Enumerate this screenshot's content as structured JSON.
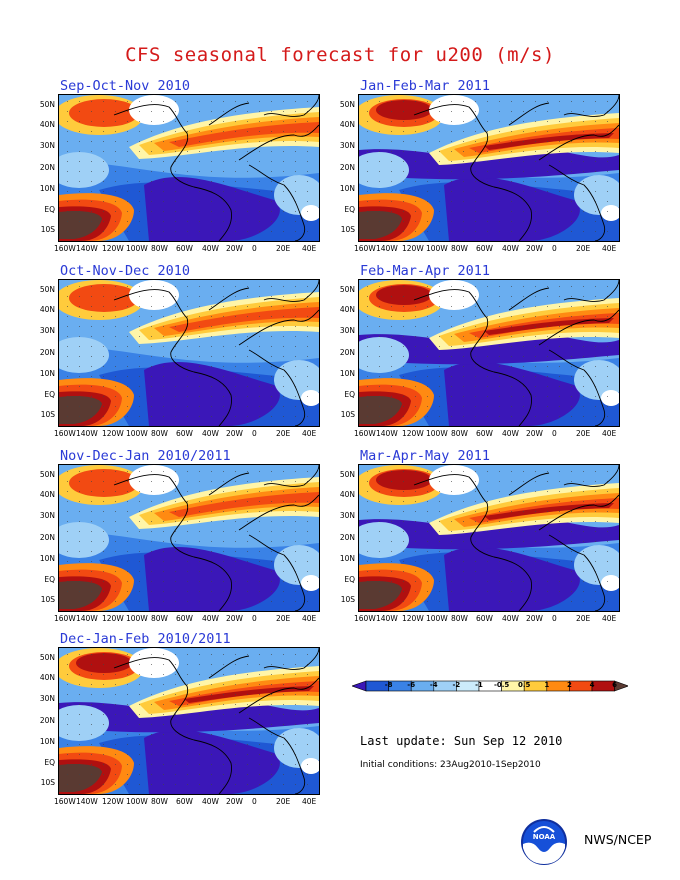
{
  "title": "CFS seasonal forecast for u200 (m/s)",
  "panels": [
    {
      "label": "Sep-Oct-Nov 2010",
      "variant": 0
    },
    {
      "label": "Jan-Feb-Mar 2011",
      "variant": 4
    },
    {
      "label": "Oct-Nov-Dec 2010",
      "variant": 1
    },
    {
      "label": "Feb-Mar-Apr 2011",
      "variant": 5
    },
    {
      "label": "Nov-Dec-Jan 2010/2011",
      "variant": 2
    },
    {
      "label": "Mar-Apr-May 2011",
      "variant": 6
    },
    {
      "label": "Dec-Jan-Feb 2010/2011",
      "variant": 3
    }
  ],
  "y_ticks": [
    "50N",
    "40N",
    "30N",
    "20N",
    "10N",
    "EQ",
    "10S"
  ],
  "x_ticks": [
    "160W",
    "140W",
    "120W",
    "100W",
    "80W",
    "60W",
    "40W",
    "20W",
    "0",
    "20E",
    "40E"
  ],
  "colorbar": {
    "labels": [
      "-8",
      "-6",
      "-4",
      "-2",
      "-1",
      "-0.5",
      "0.5",
      "1",
      "2",
      "4",
      "6"
    ],
    "colors": [
      "#3b17b8",
      "#1f58d4",
      "#3a82e6",
      "#6aaef0",
      "#9fd0f6",
      "#ccecfb",
      "#ffffff",
      "#fff5a8",
      "#ffcb3c",
      "#ff8a12",
      "#f24a12",
      "#b01010",
      "#5a3a32"
    ]
  },
  "last_update": "Last update: Sun Sep 12 2010",
  "initial_conditions": "Initial conditions: 23Aug2010-1Sep2010",
  "agency": "NWS/NCEP",
  "logo_text": "NOAA",
  "chart_data": {
    "type": "heatmap",
    "title": "CFS seasonal forecast for u200 (m/s)",
    "variable": "u200",
    "units": "m/s",
    "panels": [
      "Sep-Oct-Nov 2010",
      "Jan-Feb-Mar 2011",
      "Oct-Nov-Dec 2010",
      "Feb-Mar-Apr 2011",
      "Nov-Dec-Jan 2010/2011",
      "Mar-Apr-May 2011",
      "Dec-Jan-Feb 2010/2011"
    ],
    "x_range": [
      "160W",
      "50E"
    ],
    "y_range": [
      "15S",
      "60N"
    ],
    "contour_levels": [
      -8,
      -6,
      -4,
      -2,
      -1,
      -0.5,
      0.5,
      1,
      2,
      4,
      6
    ]
  }
}
